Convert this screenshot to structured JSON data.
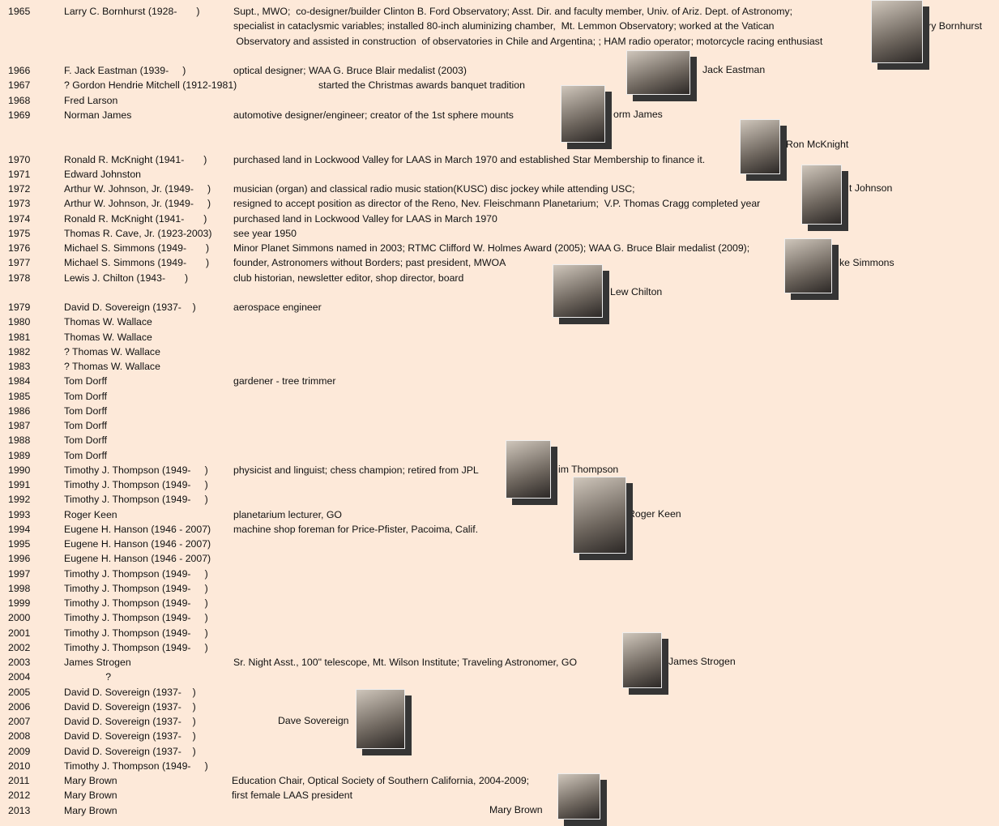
{
  "rows": [
    {
      "year": "1965",
      "name": "Larry C. Bornhurst (1928-       )",
      "desc_lines": [
        "Supt., MWO;  co-designer/builder Clinton B. Ford Observatory; Asst. Dir. and faculty member, Univ. of Ariz. Dept. of Astronomy;",
        "specialist in cataclysmic variables; installed 80-inch aluminizing chamber,  Mt. Lemmon Observatory; worked at the Vatican",
        " Observatory and assisted in construction  of observatories in Chile and Argentina; ; HAM radio operator; motorcycle racing enthusiast"
      ]
    },
    {
      "year": "1966",
      "name": "F. Jack Eastman (1939-     )",
      "desc": "optical designer; WAA G. Bruce Blair medalist (2003)"
    },
    {
      "year": "1967",
      "name": "? Gordon Hendrie Mitchell (1912-1981)",
      "desc": "started the Christmas awards banquet tradition"
    },
    {
      "year": "1968",
      "name": "Fred Larson"
    },
    {
      "year": "1969",
      "name": "Norman James",
      "desc": "automotive designer/engineer; creator of the 1st sphere mounts"
    },
    {
      "year": "1970",
      "name": "Ronald R. McKnight (1941-       )",
      "desc": "purchased land in Lockwood Valley for LAAS in March 1970 and established Star Membership to finance it."
    },
    {
      "year": "1971",
      "name": "Edward Johnston"
    },
    {
      "year": "1972",
      "name": "Arthur W. Johnson, Jr. (1949-     )",
      "desc": "musician (organ) and classical radio music station(KUSC) disc jockey while attending USC;"
    },
    {
      "year": "1973",
      "name": "Arthur W. Johnson, Jr. (1949-     )",
      "desc": "resigned to accept position as director of the Reno, Nev. Fleischmann Planetarium;  V.P. Thomas Cragg completed year"
    },
    {
      "year": "1974",
      "name": "Ronald R. McKnight (1941-       )",
      "desc": "purchased land in Lockwood Valley for LAAS in March 1970"
    },
    {
      "year": "1975",
      "name": "Thomas R. Cave, Jr. (1923-2003)",
      "desc": "see year 1950"
    },
    {
      "year": "1976",
      "name": "Michael S. Simmons (1949-       )",
      "desc": "Minor Planet Simmons named in 2003; RTMC Clifford W. Holmes Award (2005); WAA G. Bruce Blair medalist (2009);"
    },
    {
      "year": "1977",
      "name": "Michael S. Simmons (1949-       )",
      "desc": "founder, Astronomers without Borders; past president, MWOA"
    },
    {
      "year": "1978",
      "name": "Lewis J. Chilton (1943-       )",
      "desc": "club historian, newsletter editor, shop director, board"
    },
    {
      "year": "1979",
      "name": "David D. Sovereign (1937-    )",
      "desc": "aerospace engineer"
    },
    {
      "year": "1980",
      "name": "Thomas W. Wallace"
    },
    {
      "year": "1981",
      "name": "Thomas W. Wallace"
    },
    {
      "year": "1982",
      "name": "? Thomas W. Wallace"
    },
    {
      "year": "1983",
      "name": "? Thomas W. Wallace"
    },
    {
      "year": "1984",
      "name": "Tom Dorff",
      "desc": "gardener - tree trimmer"
    },
    {
      "year": "1985",
      "name": "Tom Dorff"
    },
    {
      "year": "1986",
      "name": "Tom Dorff"
    },
    {
      "year": "1987",
      "name": "Tom Dorff"
    },
    {
      "year": "1988",
      "name": "Tom Dorff"
    },
    {
      "year": "1989",
      "name": "Tom Dorff"
    },
    {
      "year": "1990",
      "name": "Timothy J. Thompson (1949-     )",
      "desc": "physicist and linguist; chess champion; retired from JPL"
    },
    {
      "year": "1991",
      "name": "Timothy J. Thompson (1949-     )"
    },
    {
      "year": "1992",
      "name": "Timothy J. Thompson (1949-     )"
    },
    {
      "year": "1993",
      "name": "Roger Keen",
      "desc": "planetarium lecturer, GO"
    },
    {
      "year": "1994",
      "name": "Eugene H. Hanson (1946 - 2007)",
      "desc": "machine shop foreman for Price-Pfister, Pacoima, Calif."
    },
    {
      "year": "1995",
      "name": "Eugene H. Hanson (1946 - 2007)"
    },
    {
      "year": "1996",
      "name": "Eugene H. Hanson (1946 - 2007)"
    },
    {
      "year": "1997",
      "name": "Timothy J. Thompson (1949-     )"
    },
    {
      "year": "1998",
      "name": "Timothy J. Thompson (1949-     )"
    },
    {
      "year": "1999",
      "name": "Timothy J. Thompson (1949-     )"
    },
    {
      "year": "2000",
      "name": "Timothy J. Thompson (1949-     )"
    },
    {
      "year": "2001",
      "name": "Timothy J. Thompson (1949-     )"
    },
    {
      "year": "2002",
      "name": "Timothy J. Thompson (1949-     )"
    },
    {
      "year": "2003",
      "name": "James Strogen",
      "desc": "Sr. Night Asst., 100\" telescope, Mt. Wilson Institute; Traveling Astronomer, GO"
    },
    {
      "year": "2004",
      "name": "               ?"
    },
    {
      "year": "2005",
      "name": "David D. Sovereign (1937-    )"
    },
    {
      "year": "2006",
      "name": "David D. Sovereign (1937-    )"
    },
    {
      "year": "2007",
      "name": "David D. Sovereign (1937-    )"
    },
    {
      "year": "2008",
      "name": "David D. Sovereign (1937-    )"
    },
    {
      "year": "2009",
      "name": "David D. Sovereign (1937-    )"
    },
    {
      "year": "2010",
      "name": "Timothy J. Thompson (1949-     )"
    },
    {
      "year": "2011",
      "name": "Mary Brown",
      "desc": "Education Chair, Optical Society of Southern California, 2004-2009;"
    },
    {
      "year": "2012",
      "name": "Mary Brown",
      "desc": "first female LAAS president"
    },
    {
      "year": "2013",
      "name": "Mary Brown"
    }
  ],
  "photos": [
    {
      "caption": "rry Bornhurst"
    },
    {
      "caption": "Jack Eastman"
    },
    {
      "caption": "orm James"
    },
    {
      "caption": "Ron McKnight"
    },
    {
      "caption": "t Johnson"
    },
    {
      "caption": "ke Simmons"
    },
    {
      "caption": "Lew Chilton"
    },
    {
      "caption": "im Thompson"
    },
    {
      "caption": "Roger Keen"
    },
    {
      "caption": "James Strogen"
    },
    {
      "caption": "Dave Sovereign"
    },
    {
      "caption": "Mary Brown"
    }
  ]
}
